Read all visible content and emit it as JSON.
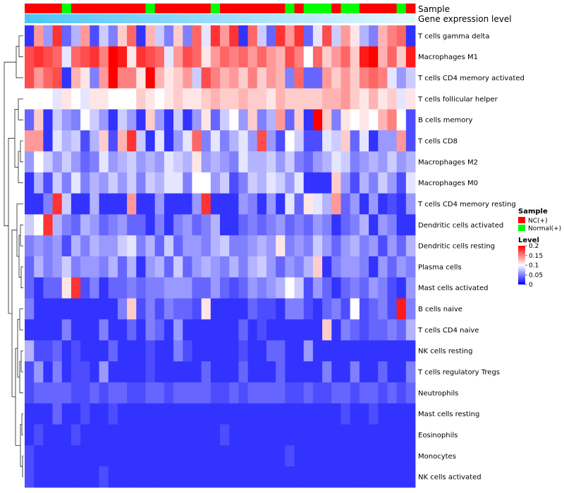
{
  "chart_data": {
    "type": "heatmap",
    "title": "",
    "annotation_labels": {
      "sample": "Sample",
      "gene_expression": "Gene expression level"
    },
    "n_samples": 42,
    "sample_groups": [
      "NC",
      "NC",
      "NC",
      "NC",
      "Normal",
      "NC",
      "NC",
      "NC",
      "NC",
      "NC",
      "NC",
      "NC",
      "NC",
      "Normal",
      "NC",
      "NC",
      "NC",
      "NC",
      "NC",
      "NC",
      "Normal",
      "NC",
      "NC",
      "NC",
      "NC",
      "NC",
      "NC",
      "NC",
      "Normal",
      "NC",
      "Normal",
      "Normal",
      "Normal",
      "NC",
      "Normal",
      "Normal",
      "NC",
      "NC",
      "NC",
      "NC",
      "Normal",
      "NC"
    ],
    "row_labels": [
      "T cells gamma delta",
      "Macrophages M1",
      "T cells CD4 memory activated",
      "T cells follicular helper",
      "B cells memory",
      "T cells CD8",
      "Macrophages M2",
      "Macrophages M0",
      "T cells CD4 memory resting",
      "Dendritic cells activated",
      "Dendritic cells resting",
      "Plasma cells",
      "Mast cells activated",
      "B cells naive",
      "T cells CD4 naive",
      "NK cells resting",
      "T cells regulatory  Tregs",
      "Neutrophils",
      "Mast cells resting",
      "Eosinophils",
      "Monocytes",
      "NK cells activated"
    ],
    "values": [
      [
        0.02,
        0.14,
        0.06,
        0.18,
        0.04,
        0.07,
        0.14,
        0.03,
        0.08,
        0.05,
        0.12,
        0.16,
        0.02,
        0.13,
        0.08,
        0.05,
        0.12,
        0.05,
        0.16,
        0.09,
        0.18,
        0.14,
        0.18,
        0.02,
        0.16,
        0.08,
        0.04,
        0.18,
        0.14,
        0.18,
        0.04,
        0.09,
        0.17,
        0.08,
        0.14,
        0.11,
        0.07,
        0.05,
        0.13,
        0.15,
        0.16,
        0.02
      ],
      [
        0.17,
        0.18,
        0.17,
        0.16,
        0.09,
        0.16,
        0.17,
        0.18,
        0.15,
        0.2,
        0.19,
        0.11,
        0.18,
        0.17,
        0.16,
        0.09,
        0.14,
        0.17,
        0.16,
        0.11,
        0.14,
        0.16,
        0.15,
        0.16,
        0.14,
        0.16,
        0.14,
        0.13,
        0.17,
        0.15,
        0.1,
        0.16,
        0.12,
        0.14,
        0.16,
        0.12,
        0.19,
        0.2,
        0.13,
        0.16,
        0.12,
        0.19
      ],
      [
        0.17,
        0.14,
        0.16,
        0.17,
        0.02,
        0.13,
        0.11,
        0.05,
        0.14,
        0.2,
        0.15,
        0.15,
        0.11,
        0.2,
        0.13,
        0.11,
        0.12,
        0.14,
        0.08,
        0.17,
        0.15,
        0.13,
        0.14,
        0.12,
        0.15,
        0.12,
        0.14,
        0.13,
        0.05,
        0.16,
        0.04,
        0.04,
        0.14,
        0.12,
        0.14,
        0.12,
        0.15,
        0.16,
        0.15,
        0.09,
        0.06,
        0.08
      ],
      [
        0.1,
        0.1,
        0.1,
        0.09,
        0.11,
        0.1,
        0.09,
        0.11,
        0.11,
        0.1,
        0.1,
        0.1,
        0.12,
        0.11,
        0.1,
        0.11,
        0.12,
        0.11,
        0.11,
        0.12,
        0.13,
        0.12,
        0.12,
        0.13,
        0.12,
        0.12,
        0.11,
        0.13,
        0.12,
        0.12,
        0.12,
        0.12,
        0.13,
        0.13,
        0.14,
        0.12,
        0.11,
        0.13,
        0.11,
        0.12,
        0.09,
        0.11
      ],
      [
        0.04,
        0.12,
        0.02,
        0.08,
        0.06,
        0.05,
        0.1,
        0.08,
        0.06,
        0.02,
        0.08,
        0.06,
        0.02,
        0.12,
        0.06,
        0.02,
        0.08,
        0.02,
        0.06,
        0.11,
        0.04,
        0.08,
        0.1,
        0.06,
        0.12,
        0.05,
        0.07,
        0.14,
        0.04,
        0.12,
        0.02,
        0.2,
        0.12,
        0.05,
        0.11,
        0.1,
        0.11,
        0.1,
        0.13,
        0.15,
        0.1,
        0.03
      ],
      [
        0.14,
        0.14,
        0.02,
        0.09,
        0.07,
        0.08,
        0.03,
        0.07,
        0.12,
        0.03,
        0.13,
        0.18,
        0.08,
        0.02,
        0.09,
        0.02,
        0.06,
        0.09,
        0.16,
        0.05,
        0.09,
        0.05,
        0.07,
        0.09,
        0.06,
        0.17,
        0.06,
        0.03,
        0.1,
        0.08,
        0.03,
        0.03,
        0.09,
        0.08,
        0.12,
        0.04,
        0.09,
        0.02,
        0.06,
        0.06,
        0.14,
        0.03
      ],
      [
        0.06,
        0.1,
        0.08,
        0.06,
        0.08,
        0.06,
        0.04,
        0.05,
        0.09,
        0.06,
        0.07,
        0.08,
        0.06,
        0.07,
        0.06,
        0.09,
        0.08,
        0.07,
        0.11,
        0.06,
        0.07,
        0.06,
        0.05,
        0.09,
        0.07,
        0.07,
        0.08,
        0.06,
        0.08,
        0.05,
        0.04,
        0.06,
        0.07,
        0.09,
        0.08,
        0.05,
        0.06,
        0.07,
        0.06,
        0.08,
        0.06,
        0.07
      ],
      [
        0.02,
        0.07,
        0.03,
        0.08,
        0.05,
        0.09,
        0.05,
        0.07,
        0.06,
        0.08,
        0.06,
        0.08,
        0.05,
        0.08,
        0.07,
        0.09,
        0.09,
        0.05,
        0.1,
        0.1,
        0.06,
        0.08,
        0.03,
        0.05,
        0.08,
        0.07,
        0.09,
        0.08,
        0.06,
        0.09,
        0.02,
        0.02,
        0.02,
        0.12,
        0.06,
        0.03,
        0.07,
        0.05,
        0.08,
        0.06,
        0.03,
        0.09
      ],
      [
        0.02,
        0.02,
        0.05,
        0.18,
        0.08,
        0.02,
        0.02,
        0.07,
        0.02,
        0.02,
        0.02,
        0.14,
        0.02,
        0.02,
        0.06,
        0.02,
        0.02,
        0.02,
        0.06,
        0.18,
        0.02,
        0.02,
        0.02,
        0.06,
        0.05,
        0.02,
        0.06,
        0.02,
        0.09,
        0.04,
        0.11,
        0.09,
        0.07,
        0.14,
        0.04,
        0.06,
        0.02,
        0.06,
        0.02,
        0.03,
        0.02,
        0.06
      ],
      [
        0.08,
        0.1,
        0.18,
        0.07,
        0.05,
        0.04,
        0.07,
        0.06,
        0.04,
        0.05,
        0.06,
        0.04,
        0.04,
        0.02,
        0.05,
        0.02,
        0.05,
        0.06,
        0.04,
        0.05,
        0.07,
        0.02,
        0.02,
        0.04,
        0.05,
        0.04,
        0.05,
        0.06,
        0.04,
        0.05,
        0.04,
        0.06,
        0.05,
        0.02,
        0.04,
        0.05,
        0.07,
        0.02,
        0.06,
        0.05,
        0.02,
        0.02
      ],
      [
        0.05,
        0.06,
        0.05,
        0.06,
        0.03,
        0.07,
        0.05,
        0.07,
        0.06,
        0.06,
        0.08,
        0.09,
        0.05,
        0.07,
        0.04,
        0.08,
        0.04,
        0.06,
        0.06,
        0.05,
        0.07,
        0.08,
        0.05,
        0.05,
        0.06,
        0.07,
        0.06,
        0.11,
        0.05,
        0.06,
        0.05,
        0.08,
        0.06,
        0.04,
        0.06,
        0.07,
        0.05,
        0.06,
        0.03,
        0.06,
        0.04,
        0.07
      ],
      [
        0.04,
        0.07,
        0.05,
        0.06,
        0.08,
        0.05,
        0.06,
        0.06,
        0.05,
        0.07,
        0.04,
        0.07,
        0.02,
        0.06,
        0.07,
        0.04,
        0.08,
        0.04,
        0.06,
        0.07,
        0.06,
        0.05,
        0.07,
        0.05,
        0.07,
        0.08,
        0.06,
        0.04,
        0.06,
        0.05,
        0.07,
        0.12,
        0.02,
        0.05,
        0.06,
        0.06,
        0.05,
        0.02,
        0.06,
        0.04,
        0.06,
        0.05
      ],
      [
        0.04,
        0.02,
        0.04,
        0.04,
        0.11,
        0.18,
        0.03,
        0.05,
        0.02,
        0.04,
        0.04,
        0.05,
        0.04,
        0.05,
        0.05,
        0.06,
        0.06,
        0.06,
        0.04,
        0.04,
        0.06,
        0.04,
        0.03,
        0.04,
        0.06,
        0.05,
        0.06,
        0.07,
        0.1,
        0.08,
        0.03,
        0.06,
        0.04,
        0.02,
        0.04,
        0.05,
        0.04,
        0.06,
        0.05,
        0.03,
        0.02,
        0.06
      ],
      [
        0.05,
        0.02,
        0.02,
        0.02,
        0.02,
        0.02,
        0.02,
        0.02,
        0.02,
        0.02,
        0.05,
        0.12,
        0.03,
        0.05,
        0.03,
        0.05,
        0.04,
        0.04,
        0.03,
        0.11,
        0.02,
        0.02,
        0.02,
        0.02,
        0.04,
        0.03,
        0.03,
        0.02,
        0.05,
        0.05,
        0.03,
        0.02,
        0.04,
        0.05,
        0.03,
        0.1,
        0.03,
        0.04,
        0.05,
        0.03,
        0.19,
        0.05
      ],
      [
        0.02,
        0.02,
        0.02,
        0.02,
        0.05,
        0.02,
        0.02,
        0.02,
        0.05,
        0.02,
        0.02,
        0.04,
        0.02,
        0.05,
        0.04,
        0.02,
        0.06,
        0.02,
        0.02,
        0.02,
        0.02,
        0.02,
        0.02,
        0.04,
        0.02,
        0.03,
        0.02,
        0.02,
        0.02,
        0.02,
        0.02,
        0.02,
        0.12,
        0.02,
        0.05,
        0.04,
        0.03,
        0.04,
        0.04,
        0.05,
        0.04,
        0.07
      ],
      [
        0.07,
        0.03,
        0.03,
        0.04,
        0.02,
        0.03,
        0.02,
        0.02,
        0.02,
        0.04,
        0.02,
        0.02,
        0.02,
        0.03,
        0.02,
        0.02,
        0.05,
        0.03,
        0.02,
        0.02,
        0.02,
        0.02,
        0.02,
        0.03,
        0.02,
        0.02,
        0.04,
        0.04,
        0.02,
        0.02,
        0.06,
        0.02,
        0.02,
        0.02,
        0.02,
        0.02,
        0.02,
        0.02,
        0.02,
        0.02,
        0.02,
        0.02
      ],
      [
        0.03,
        0.06,
        0.02,
        0.05,
        0.02,
        0.03,
        0.03,
        0.02,
        0.06,
        0.02,
        0.02,
        0.02,
        0.02,
        0.03,
        0.02,
        0.02,
        0.02,
        0.02,
        0.02,
        0.04,
        0.02,
        0.02,
        0.02,
        0.04,
        0.02,
        0.02,
        0.02,
        0.04,
        0.02,
        0.02,
        0.02,
        0.02,
        0.05,
        0.02,
        0.02,
        0.05,
        0.02,
        0.02,
        0.04,
        0.02,
        0.02,
        0.05
      ],
      [
        0.03,
        0.04,
        0.04,
        0.04,
        0.04,
        0.03,
        0.03,
        0.04,
        0.03,
        0.04,
        0.04,
        0.03,
        0.03,
        0.04,
        0.04,
        0.03,
        0.04,
        0.04,
        0.04,
        0.04,
        0.03,
        0.03,
        0.04,
        0.03,
        0.04,
        0.04,
        0.04,
        0.04,
        0.03,
        0.03,
        0.04,
        0.03,
        0.03,
        0.04,
        0.04,
        0.03,
        0.04,
        0.04,
        0.03,
        0.04,
        0.03,
        0.04
      ],
      [
        0.02,
        0.02,
        0.02,
        0.04,
        0.02,
        0.02,
        0.03,
        0.02,
        0.02,
        0.03,
        0.02,
        0.02,
        0.02,
        0.02,
        0.02,
        0.02,
        0.02,
        0.02,
        0.02,
        0.02,
        0.02,
        0.02,
        0.02,
        0.02,
        0.02,
        0.02,
        0.02,
        0.02,
        0.02,
        0.02,
        0.02,
        0.02,
        0.02,
        0.02,
        0.03,
        0.02,
        0.02,
        0.03,
        0.02,
        0.02,
        0.02,
        0.02
      ],
      [
        0.02,
        0.03,
        0.02,
        0.02,
        0.02,
        0.03,
        0.02,
        0.02,
        0.02,
        0.02,
        0.02,
        0.02,
        0.02,
        0.02,
        0.02,
        0.02,
        0.02,
        0.02,
        0.02,
        0.02,
        0.02,
        0.03,
        0.02,
        0.02,
        0.02,
        0.02,
        0.02,
        0.02,
        0.02,
        0.02,
        0.02,
        0.02,
        0.02,
        0.02,
        0.02,
        0.02,
        0.02,
        0.02,
        0.02,
        0.02,
        0.02,
        0.02
      ],
      [
        0.03,
        0.02,
        0.02,
        0.02,
        0.02,
        0.02,
        0.02,
        0.02,
        0.02,
        0.02,
        0.02,
        0.02,
        0.02,
        0.02,
        0.02,
        0.02,
        0.02,
        0.02,
        0.02,
        0.02,
        0.02,
        0.02,
        0.02,
        0.02,
        0.02,
        0.02,
        0.02,
        0.02,
        0.03,
        0.02,
        0.02,
        0.02,
        0.02,
        0.02,
        0.02,
        0.02,
        0.02,
        0.02,
        0.02,
        0.02,
        0.02,
        0.02
      ],
      [
        0.03,
        0.02,
        0.02,
        0.02,
        0.02,
        0.02,
        0.02,
        0.02,
        0.03,
        0.02,
        0.02,
        0.02,
        0.02,
        0.02,
        0.02,
        0.02,
        0.02,
        0.02,
        0.02,
        0.02,
        0.02,
        0.02,
        0.02,
        0.02,
        0.02,
        0.02,
        0.02,
        0.02,
        0.02,
        0.02,
        0.02,
        0.02,
        0.02,
        0.02,
        0.02,
        0.02,
        0.02,
        0.02,
        0.02,
        0.02,
        0.02,
        0.02
      ]
    ],
    "color_scale": {
      "min": 0,
      "mid": 0.1,
      "max": 0.2,
      "low_color": "#0000ff",
      "mid_color": "#ffffff",
      "high_color": "#ff0000"
    },
    "legend": {
      "sample_title": "Sample",
      "sample_entries": [
        {
          "key": "NC",
          "label": "NC(+)",
          "color": "#ff0000"
        },
        {
          "key": "Normal",
          "label": "Normal(+)",
          "color": "#00ff00"
        }
      ],
      "level_title": "Level",
      "level_ticks": [
        {
          "value": 0.2,
          "label": "0.2"
        },
        {
          "value": 0.15,
          "label": "0.15"
        },
        {
          "value": 0.1,
          "label": "0.1"
        },
        {
          "value": 0.05,
          "label": "0.05"
        },
        {
          "value": 0,
          "label": "0"
        }
      ]
    },
    "gene_expression_gradient": [
      "#4fc3f7",
      "#e6f7ff"
    ]
  }
}
